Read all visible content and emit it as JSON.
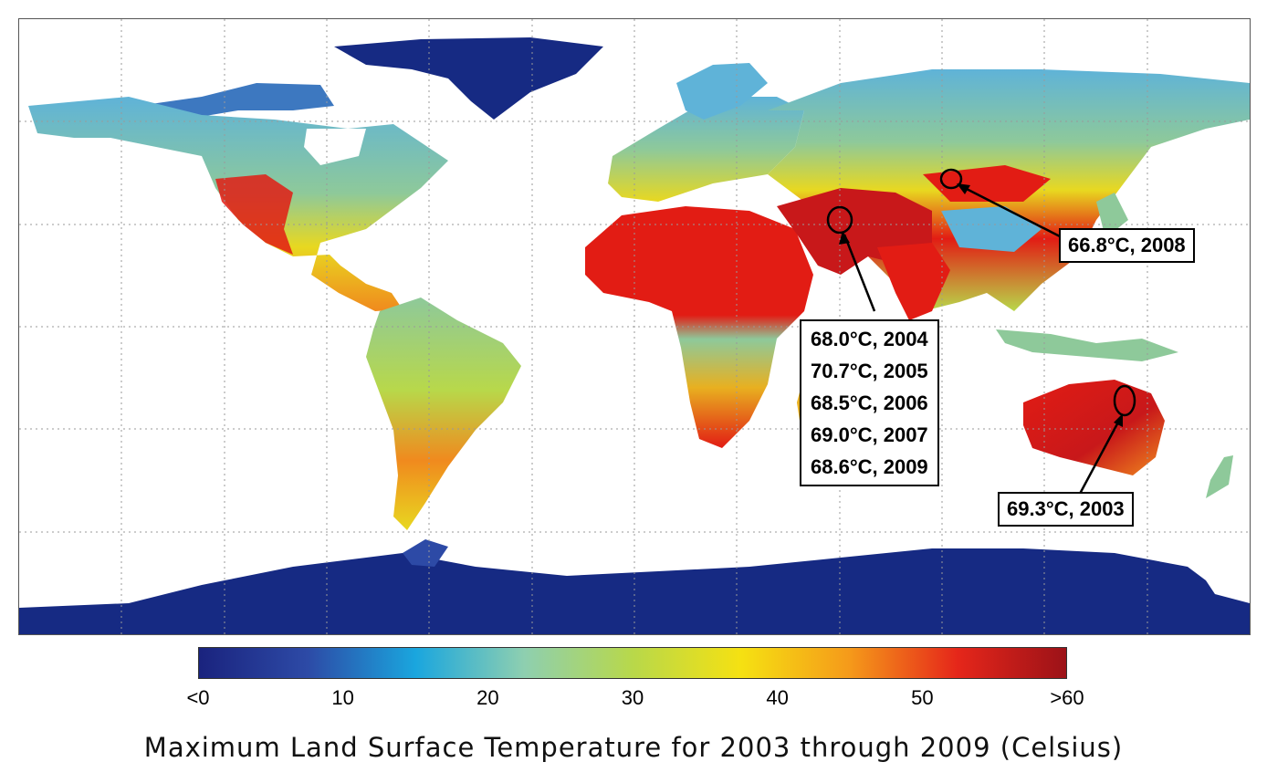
{
  "map": {
    "colors": {
      "ocean": "#ffffff",
      "cold": "#162a83",
      "cool": "#5fb3d8",
      "mild": "#8ec99a",
      "warm": "#e8d820",
      "hot": "#f08a1e",
      "very_hot": "#e21c14",
      "extreme": "#a3151b",
      "grid": "#9a9a9a"
    },
    "annotations": [
      {
        "id": "mongolia",
        "lines": [
          "66.8°C, 2008"
        ]
      },
      {
        "id": "iran",
        "lines": [
          "68.0°C, 2004",
          "70.7°C, 2005",
          "68.5°C, 2006",
          "69.0°C, 2007",
          "68.6°C, 2009"
        ]
      },
      {
        "id": "australia",
        "lines": [
          "69.3°C, 2003"
        ]
      }
    ]
  },
  "colorbar": {
    "stops": [
      "#1a237e",
      "#2d4aa6",
      "#1aa6de",
      "#8ecfb0",
      "#b8d84a",
      "#f5e112",
      "#f59a1a",
      "#e5261a",
      "#9c1218"
    ],
    "ticks": [
      "<0",
      "10",
      "20",
      "30",
      "40",
      "50",
      ">60"
    ],
    "title": "Maximum Land Surface Temperature for 2003 through 2009 (Celsius)"
  }
}
